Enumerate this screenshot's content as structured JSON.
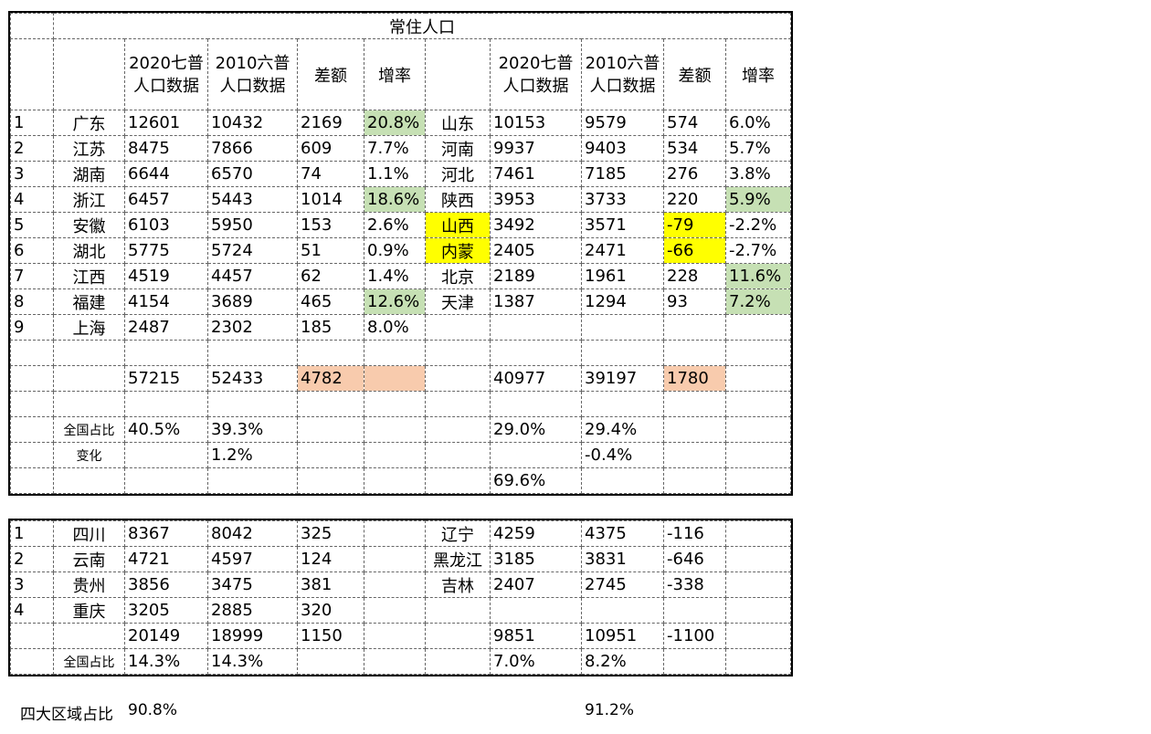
{
  "title": "常住人口",
  "headers": {
    "y2020": [
      "2020七普",
      "人口数据"
    ],
    "y2010": [
      "2010六普",
      "人口数据"
    ],
    "diff": "差额",
    "rate": "增率"
  },
  "table1": {
    "rows": [
      {
        "n": "1",
        "a": "广东",
        "a20": "12601",
        "a10": "10432",
        "ad": "2169",
        "ar": "20.8%",
        "b": "山东",
        "b20": "10153",
        "b10": "9579",
        "bd": "574",
        "br": "6.0%"
      },
      {
        "n": "2",
        "a": "江苏",
        "a20": "8475",
        "a10": "7866",
        "ad": "609",
        "ar": "7.7%",
        "b": "河南",
        "b20": "9937",
        "b10": "9403",
        "bd": "534",
        "br": "5.7%"
      },
      {
        "n": "3",
        "a": "湖南",
        "a20": "6644",
        "a10": "6570",
        "ad": "74",
        "ar": "1.1%",
        "b": "河北",
        "b20": "7461",
        "b10": "7185",
        "bd": "276",
        "br": "3.8%"
      },
      {
        "n": "4",
        "a": "浙江",
        "a20": "6457",
        "a10": "5443",
        "ad": "1014",
        "ar": "18.6%",
        "b": "陕西",
        "b20": "3953",
        "b10": "3733",
        "bd": "220",
        "br": "5.9%"
      },
      {
        "n": "5",
        "a": "安徽",
        "a20": "6103",
        "a10": "5950",
        "ad": "153",
        "ar": "2.6%",
        "b": "山西",
        "b20": "3492",
        "b10": "3571",
        "bd": "-79",
        "br": "-2.2%"
      },
      {
        "n": "6",
        "a": "湖北",
        "a20": "5775",
        "a10": "5724",
        "ad": "51",
        "ar": "0.9%",
        "b": "内蒙",
        "b20": "2405",
        "b10": "2471",
        "bd": "-66",
        "br": "-2.7%"
      },
      {
        "n": "7",
        "a": "江西",
        "a20": "4519",
        "a10": "4457",
        "ad": "62",
        "ar": "1.4%",
        "b": "北京",
        "b20": "2189",
        "b10": "1961",
        "bd": "228",
        "br": "11.6%"
      },
      {
        "n": "8",
        "a": "福建",
        "a20": "4154",
        "a10": "3689",
        "ad": "465",
        "ar": "12.6%",
        "b": "天津",
        "b20": "1387",
        "b10": "1294",
        "bd": "93",
        "br": "7.2%"
      },
      {
        "n": "9",
        "a": "上海",
        "a20": "2487",
        "a10": "2302",
        "ad": "185",
        "ar": "8.0%",
        "b": "",
        "b20": "",
        "b10": "",
        "bd": "",
        "br": ""
      }
    ],
    "totals": {
      "a20": "57215",
      "a10": "52433",
      "ad": "4782",
      "b20": "40977",
      "b10": "39197",
      "bd": "1780"
    },
    "share_label": "全国占比",
    "share": {
      "a20": "40.5%",
      "a10": "39.3%",
      "b20": "29.0%",
      "b10": "29.4%"
    },
    "change_label": "变化",
    "change": {
      "a10": "1.2%",
      "b10": "-0.4%"
    },
    "combined": "69.6%"
  },
  "table2": {
    "rows": [
      {
        "n": "1",
        "a": "四川",
        "a20": "8367",
        "a10": "8042",
        "ad": "325",
        "b": "辽宁",
        "b20": "4259",
        "b10": "4375",
        "bd": "-116"
      },
      {
        "n": "2",
        "a": "云南",
        "a20": "4721",
        "a10": "4597",
        "ad": "124",
        "b": "黑龙江",
        "b20": "3185",
        "b10": "3831",
        "bd": "-646"
      },
      {
        "n": "3",
        "a": "贵州",
        "a20": "3856",
        "a10": "3475",
        "ad": "381",
        "b": "吉林",
        "b20": "2407",
        "b10": "2745",
        "bd": "-338"
      },
      {
        "n": "4",
        "a": "重庆",
        "a20": "3205",
        "a10": "2885",
        "ad": "320",
        "b": "",
        "b20": "",
        "b10": "",
        "bd": ""
      }
    ],
    "totals": {
      "a20": "20149",
      "a10": "18999",
      "ad": "1150",
      "b20": "9851",
      "b10": "10951",
      "bd": "-1100"
    },
    "share_label": "全国占比",
    "share": {
      "a20": "14.3%",
      "a10": "14.3%",
      "b20": "7.0%",
      "b10": "8.2%"
    }
  },
  "footer": {
    "label": "四大区域占比",
    "v2020": "90.8%",
    "v2010": "91.2%"
  },
  "colors": {
    "green": "#c6e0b4",
    "yellow": "#ffff00",
    "peach": "#f8cbad"
  }
}
